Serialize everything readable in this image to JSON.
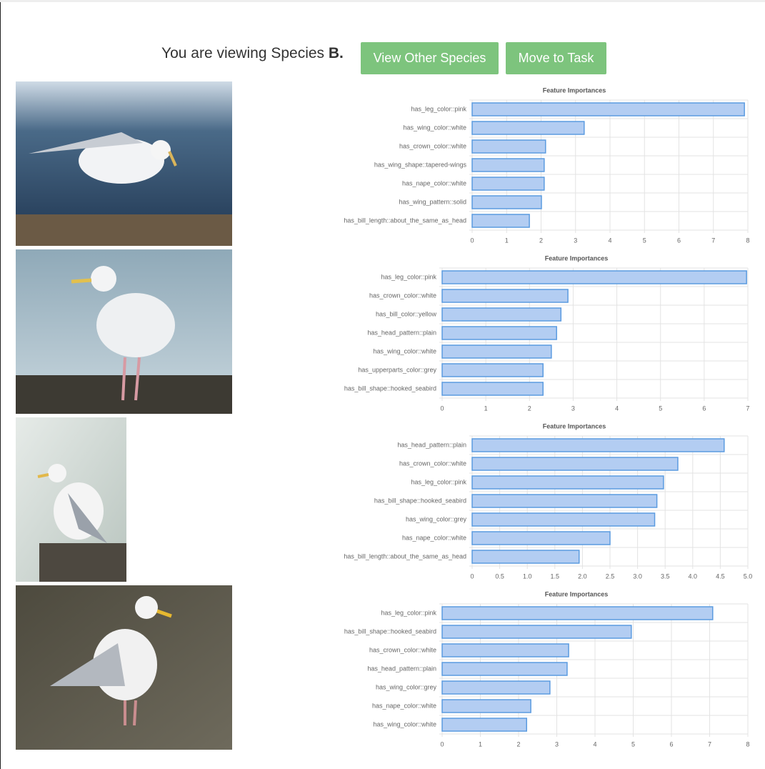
{
  "header": {
    "text": "You are viewing Species",
    "species": "B."
  },
  "buttons": [
    "View Other Species",
    "Move to Task"
  ],
  "chart_data": [
    {
      "type": "bar",
      "orientation": "horizontal",
      "title": "Feature Importances",
      "color": "#b3cdf2",
      "edge_color": "#5b9be0",
      "grid": true,
      "categories": [
        "has_leg_color::pink",
        "has_wing_color::white",
        "has_crown_color::white",
        "has_wing_shape::tapered-wings",
        "has_nape_color::white",
        "has_wing_pattern::solid",
        "has_bill_length::about_the_same_as_head"
      ],
      "values": [
        7.9,
        3.25,
        2.13,
        2.09,
        2.09,
        2.01,
        1.66
      ],
      "xlim": [
        0,
        8
      ],
      "xticks": [
        0,
        1,
        2,
        3,
        4,
        5,
        6,
        7,
        8
      ]
    },
    {
      "type": "bar",
      "orientation": "horizontal",
      "title": "Feature Importances",
      "color": "#b3cdf2",
      "edge_color": "#5b9be0",
      "grid": true,
      "categories": [
        "has_leg_color::pink",
        "has_crown_color::white",
        "has_bill_color::yellow",
        "has_head_pattern::plain",
        "has_wing_color::white",
        "has_upperparts_color::grey",
        "has_bill_shape::hooked_seabird"
      ],
      "values": [
        6.97,
        2.88,
        2.72,
        2.62,
        2.5,
        2.31,
        2.31
      ],
      "xlim": [
        0,
        7
      ],
      "xticks": [
        0,
        1,
        2,
        3,
        4,
        5,
        6,
        7
      ]
    },
    {
      "type": "bar",
      "orientation": "horizontal",
      "title": "Feature Importances",
      "color": "#b3cdf2",
      "edge_color": "#5b9be0",
      "grid": true,
      "categories": [
        "has_head_pattern::plain",
        "has_crown_color::white",
        "has_leg_color::pink",
        "has_bill_shape::hooked_seabird",
        "has_wing_color::grey",
        "has_nape_color::white",
        "has_bill_length::about_the_same_as_head"
      ],
      "values": [
        4.57,
        3.73,
        3.47,
        3.35,
        3.31,
        2.5,
        1.94
      ],
      "xlim": [
        0,
        5
      ],
      "xticks": [
        0,
        0.5,
        {
          "value": 1,
          "label": "1.0"
        },
        1.5,
        {
          "value": 2,
          "label": "2.0"
        },
        2.5,
        {
          "value": 3,
          "label": "3.0"
        },
        3.5,
        {
          "value": 4,
          "label": "4.0"
        },
        4.5,
        {
          "value": 5,
          "label": "5.0"
        }
      ]
    },
    {
      "type": "bar",
      "orientation": "horizontal",
      "title": "Feature Importances",
      "color": "#b3cdf2",
      "edge_color": "#5b9be0",
      "grid": true,
      "categories": [
        "has_leg_color::pink",
        "has_bill_shape::hooked_seabird",
        "has_crown_color::white",
        "has_head_pattern::plain",
        "has_wing_color::grey",
        "has_nape_color::white",
        "has_wing_color::white"
      ],
      "values": [
        7.08,
        4.95,
        3.31,
        3.27,
        2.82,
        2.32,
        2.21
      ],
      "xlim": [
        0,
        8
      ],
      "xticks": [
        0,
        1,
        2,
        3,
        4,
        5,
        6,
        7,
        8
      ]
    }
  ]
}
